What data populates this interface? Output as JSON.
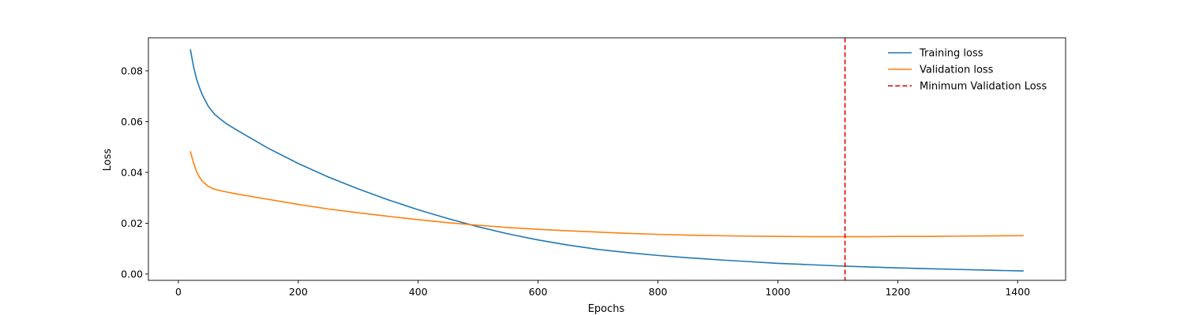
{
  "chart_data": {
    "type": "line",
    "title": "",
    "xlabel": "Epochs",
    "ylabel": "Loss",
    "xlim": [
      -50,
      1480
    ],
    "ylim": [
      -0.0025,
      0.093
    ],
    "xticks": [
      0,
      200,
      400,
      600,
      800,
      1000,
      1200,
      1400
    ],
    "xtick_labels": [
      "0",
      "200",
      "400",
      "600",
      "800",
      "1000",
      "1200",
      "1400"
    ],
    "yticks": [
      0.0,
      0.02,
      0.04,
      0.06,
      0.08
    ],
    "ytick_labels": [
      "0.00",
      "0.02",
      "0.04",
      "0.06",
      "0.08"
    ],
    "grid": false,
    "legend_position": "top-right",
    "series": [
      {
        "name": "Training loss",
        "color": "#1f77b4",
        "style": "solid",
        "x": [
          20,
          25,
          30,
          35,
          40,
          50,
          60,
          70,
          80,
          100,
          150,
          200,
          250,
          300,
          350,
          400,
          450,
          500,
          550,
          600,
          650,
          700,
          750,
          800,
          850,
          900,
          950,
          1000,
          1050,
          1100,
          1150,
          1200,
          1250,
          1300,
          1350,
          1410
        ],
        "y": [
          0.0885,
          0.082,
          0.077,
          0.0735,
          0.0705,
          0.066,
          0.063,
          0.061,
          0.0592,
          0.0563,
          0.0495,
          0.0435,
          0.0382,
          0.0335,
          0.0292,
          0.0253,
          0.0218,
          0.0186,
          0.0158,
          0.0134,
          0.0114,
          0.0097,
          0.0084,
          0.0073,
          0.0064,
          0.0056,
          0.0049,
          0.0042,
          0.0037,
          0.0032,
          0.0028,
          0.0024,
          0.0021,
          0.0018,
          0.0015,
          0.0012
        ]
      },
      {
        "name": "Validation loss",
        "color": "#ff7f0e",
        "style": "solid",
        "x": [
          20,
          25,
          30,
          35,
          40,
          50,
          60,
          70,
          80,
          100,
          150,
          200,
          250,
          300,
          350,
          400,
          450,
          500,
          550,
          600,
          650,
          700,
          750,
          800,
          850,
          900,
          950,
          1000,
          1050,
          1100,
          1150,
          1200,
          1250,
          1300,
          1350,
          1410
        ],
        "y": [
          0.0483,
          0.044,
          0.0405,
          0.0382,
          0.0365,
          0.0345,
          0.0334,
          0.0328,
          0.0323,
          0.0314,
          0.0294,
          0.0274,
          0.0256,
          0.0241,
          0.0227,
          0.0214,
          0.0202,
          0.0192,
          0.0183,
          0.0176,
          0.017,
          0.0165,
          0.016,
          0.0156,
          0.0153,
          0.0151,
          0.0149,
          0.0148,
          0.0147,
          0.0147,
          0.0147,
          0.0148,
          0.0148,
          0.0149,
          0.015,
          0.0151
        ]
      }
    ],
    "vlines": [
      {
        "name": "Minimum Validation Loss",
        "x": 1112,
        "color": "#e00000",
        "style": "dashed"
      }
    ]
  }
}
